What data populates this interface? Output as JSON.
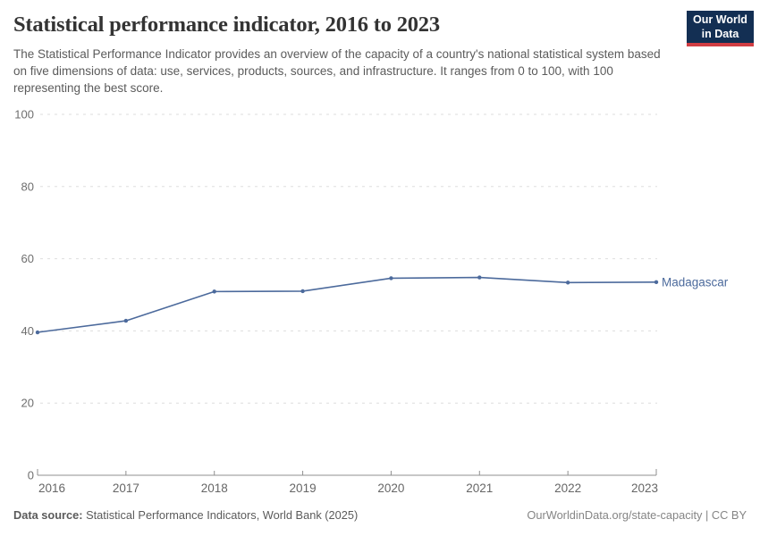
{
  "header": {
    "title": "Statistical performance indicator, 2016 to 2023",
    "subtitle": "The Statistical Performance Indicator provides an overview of the capacity of a country's national statistical system based on five dimensions of data: use, services, products, sources, and infrastructure. It ranges from 0 to 100, with 100 representing the best score.",
    "logo": {
      "line1": "Our World",
      "line2": "in Data",
      "bg_color": "#132f53",
      "bar_color": "#d13d43"
    }
  },
  "chart_data": {
    "type": "line",
    "title": "Statistical performance indicator, 2016 to 2023",
    "x": [
      2016,
      2017,
      2018,
      2019,
      2020,
      2021,
      2022,
      2023
    ],
    "series": [
      {
        "name": "Madagascar",
        "values": [
          39.6,
          42.8,
          50.9,
          51.0,
          54.6,
          54.8,
          53.4,
          53.5
        ],
        "color": "#4c6a9c"
      }
    ],
    "xlabel": "",
    "ylabel": "",
    "ylim": [
      0,
      100
    ],
    "yticks": [
      0,
      20,
      40,
      60,
      80,
      100
    ],
    "grid": true,
    "grid_color": "#dedede",
    "axis_color": "#8f8f8f",
    "tick_label_color": "#6e6e6e",
    "legend_position": "end-of-line"
  },
  "footer": {
    "datasource_label": "Data source:",
    "datasource_text": " Statistical Performance Indicators, World Bank (2025)",
    "right_text": "OurWorldinData.org/state-capacity | CC BY"
  }
}
